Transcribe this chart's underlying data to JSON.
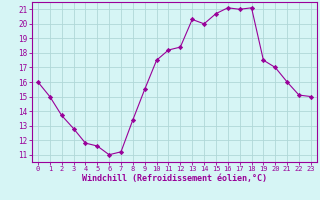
{
  "x": [
    0,
    1,
    2,
    3,
    4,
    5,
    6,
    7,
    8,
    9,
    10,
    11,
    12,
    13,
    14,
    15,
    16,
    17,
    18,
    19,
    20,
    21,
    22,
    23
  ],
  "y": [
    16,
    15,
    13.7,
    12.8,
    11.8,
    11.6,
    11.0,
    11.2,
    13.4,
    15.5,
    17.5,
    18.2,
    18.4,
    20.3,
    20.0,
    20.7,
    21.1,
    21.0,
    21.1,
    17.5,
    17.0,
    16.0,
    15.1,
    15.0
  ],
  "line_color": "#990099",
  "marker": "D",
  "marker_size": 2.2,
  "bg_color": "#d6f5f5",
  "grid_color": "#b0d8d8",
  "xlabel": "Windchill (Refroidissement éolien,°C)",
  "ylabel_ticks": [
    11,
    12,
    13,
    14,
    15,
    16,
    17,
    18,
    19,
    20,
    21
  ],
  "xlim": [
    -0.5,
    23.5
  ],
  "ylim": [
    10.5,
    21.5
  ],
  "xtick_fontsize": 5.0,
  "ytick_fontsize": 5.5,
  "xlabel_fontsize": 6.0
}
